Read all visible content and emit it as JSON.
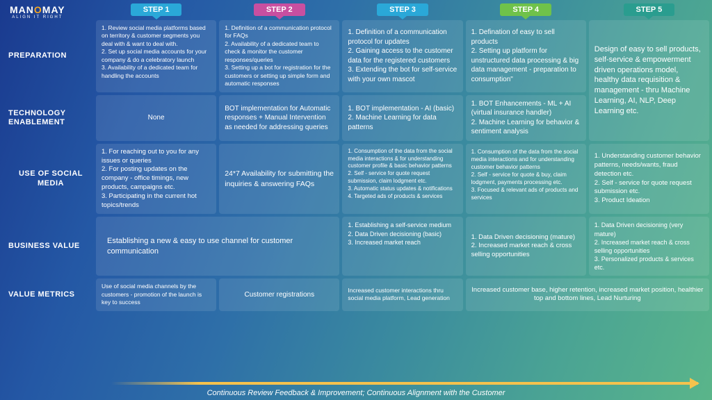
{
  "brand": {
    "name_pre": "MAN",
    "name_o": "O",
    "name_post": "MAY",
    "tagline": "ALIGN IT RIGHT"
  },
  "steps": [
    {
      "label": "STEP 1",
      "bg": "#2aa8d8"
    },
    {
      "label": "STEP 2",
      "bg": "#c84fa0"
    },
    {
      "label": "STEP 3",
      "bg": "#2aa8d8"
    },
    {
      "label": "STEP 4",
      "bg": "#6fc24a"
    },
    {
      "label": "STEP 5",
      "bg": "#2a9d8f"
    }
  ],
  "rows": {
    "preparation": {
      "label": "PREPARATION",
      "c1": "1. Review social media platforms based on territory & customer segments you deal with & want to deal with.\n 2. Set up social media accounts for your company & do a celebratory launch\n 3. Availability of a dedicated team for handling the accounts",
      "c2": "1. Definition of a communication protocol for FAQs\n2. Availability of a dedicated team to check & monitor the customer responses/queries\n3. Setting up a bot for registration for the customers or setting up simple form and automatic responses",
      "c3": "1. Definition of a communication protocol for updates\n2. Gaining access to the customer data for the registered customers\n3. Extending the bot for self-service with your own mascot",
      "c4": "1. Defination of easy to sell products\n2. Setting up platform for unstructured data processing & big data management - preparation to consumption\"",
      "c5_merged": "Design of easy to sell products, self-service & empowerment driven operations model, healthy data requisition & management - thru Machine Learning, AI, NLP, Deep Learning etc."
    },
    "tech": {
      "label": "TECHNOLOGY ENABLEMENT",
      "c1": "None",
      "c2": "BOT implementation for Automatic responses + Manual Intervention as needed for addressing queries",
      "c3": "1. BOT implementation - AI (basic)\n2. Machine Learning for data patterns",
      "c4": "1. BOT Enhancements - ML + AI (virtual insurance handler)\n2. Machine Learning for behavior & sentiment analysis"
    },
    "social": {
      "label": "USE OF SOCIAL MEDIA",
      "c1": "1. For reaching out to you for any issues or queries\n2. For posting updates on the company - office timings, new products, campaigns etc.\n3. Participating in the current hot topics/trends",
      "c2": "24*7 Availability for submitting the inquiries & answering FAQs",
      "c3": "1. Consumption of the data from the social media interactions & for understanding customer profile & basic behavior patterns\n2. Self - service for quote request submission, claim lodgment etc.\n3. Automatic status updates & notifications\n4. Targeted ads of products & services",
      "c4": "1. Consumption of the data from the social media interactions and for understanding customer behavior patterns\n2. Self - service for quote & buy, claim lodgment, payments processing etc.\n3. Focused & relevant ads of products and services",
      "c5": "1. Understanding customer behavior patterns, needs/wants, fraud detection etc.\n2. Self - service for quote request submission etc.\n3. Product Ideation"
    },
    "value": {
      "label": "BUSINESS  VALUE",
      "c12": "Establishing a new & easy to use channel for customer communication",
      "c3": "1. Establishing a self-service medium\n2. Data Driven decisioning (basic)\n3. Increased market reach",
      "c4": "1. Data Driven decisioning (mature)\n2. Increased market reach & cross selling opportunities",
      "c5": "1. Data Driven decisioning (very mature)\n2. Increased market reach & cross selling opportunities\n3. Personalized products & services etc."
    },
    "metrics": {
      "label": "VALUE METRICS",
      "c1": "Use of social media channels by the customers - promotion of the launch is key to success",
      "c2": "Customer registrations",
      "c3": "Increased customer interactions thru social media platform,  Lead generation",
      "c45": "Increased customer base, higher retention, increased market position, healthier top and bottom lines, Lead Nurturing"
    }
  },
  "arrow_caption": "Continuous Review Feedback & Improvement; Continuous Alignment with the Customer",
  "style": {
    "arrow_color": "#f5c24d",
    "row_heights": {
      "prep": 92,
      "tech": 78,
      "social": 112,
      "value": 72,
      "metrics": 48
    }
  }
}
